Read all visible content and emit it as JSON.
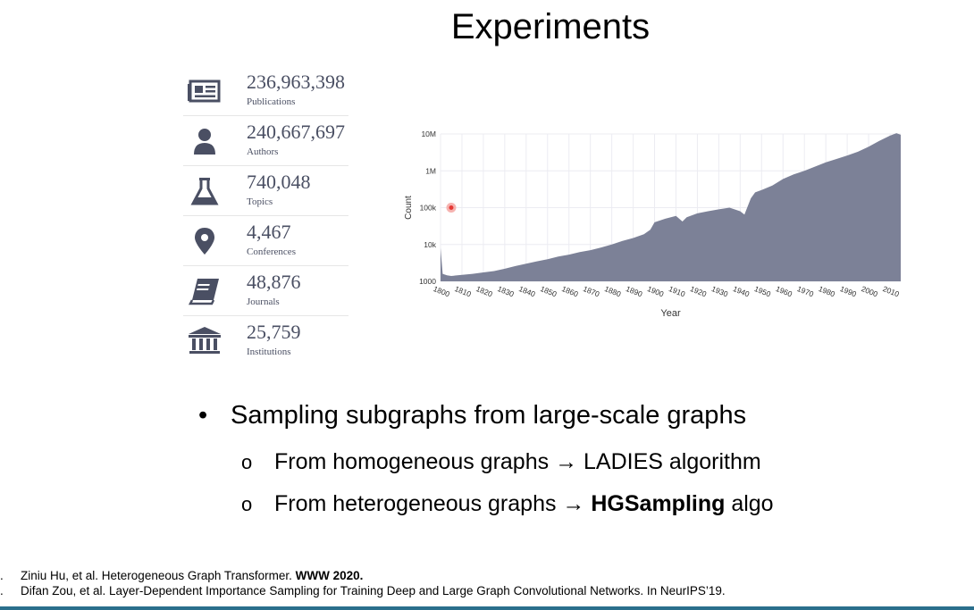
{
  "slide": {
    "title": "Experiments"
  },
  "stats": [
    {
      "value": "236,963,398",
      "label": "Publications",
      "icon": "newspaper-icon"
    },
    {
      "value": "240,667,697",
      "label": "Authors",
      "icon": "person-icon"
    },
    {
      "value": "740,048",
      "label": "Topics",
      "icon": "flask-icon"
    },
    {
      "value": "4,467",
      "label": "Conferences",
      "icon": "map-pin-icon"
    },
    {
      "value": "48,876",
      "label": "Journals",
      "icon": "book-icon"
    },
    {
      "value": "25,759",
      "label": "Institutions",
      "icon": "institution-icon"
    }
  ],
  "chart_data": {
    "type": "area",
    "xlabel": "Year",
    "ylabel": "Count",
    "yscale": "log",
    "ylim": [
      1000,
      10000000
    ],
    "yticks": [
      "1000",
      "10k",
      "100k",
      "1M",
      "10M"
    ],
    "xticks": [
      "1800",
      "1810",
      "1820",
      "1830",
      "1840",
      "1850",
      "1860",
      "1870",
      "1880",
      "1890",
      "1900",
      "1910",
      "1920",
      "1930",
      "1940",
      "1950",
      "1960",
      "1970",
      "1980",
      "1990",
      "2000",
      "2010"
    ],
    "x": [
      1800,
      1801,
      1803,
      1805,
      1810,
      1815,
      1820,
      1825,
      1830,
      1835,
      1840,
      1845,
      1850,
      1855,
      1860,
      1865,
      1870,
      1875,
      1880,
      1885,
      1890,
      1895,
      1898,
      1900,
      1905,
      1910,
      1913,
      1915,
      1920,
      1925,
      1930,
      1935,
      1940,
      1942,
      1945,
      1947,
      1950,
      1955,
      1960,
      1965,
      1970,
      1975,
      1980,
      1985,
      1990,
      1995,
      2000,
      2005,
      2010,
      2013,
      2015
    ],
    "y": [
      8000,
      1600,
      1450,
      1400,
      1500,
      1600,
      1750,
      1900,
      2200,
      2600,
      3000,
      3500,
      4000,
      4700,
      5300,
      6200,
      7000,
      8300,
      10000,
      12500,
      15000,
      19000,
      25000,
      40000,
      50000,
      60000,
      42000,
      55000,
      70000,
      80000,
      90000,
      100000,
      80000,
      65000,
      180000,
      260000,
      300000,
      400000,
      600000,
      800000,
      1000000,
      1300000,
      1700000,
      2100000,
      2600000,
      3300000,
      4500000,
      6500000,
      9000000,
      10500000,
      9500000
    ],
    "colors": {
      "area": "#7c8197",
      "grid": "#ececf2",
      "marker": "#e53935"
    }
  },
  "bullets": {
    "main": "Sampling subgraphs from large-scale graphs",
    "sub1": "From homogeneous graphs → LADIES algorithm",
    "sub2_prefix": "From heterogeneous graphs → ",
    "sub2_bold": "HGSampling",
    "sub2_suffix": " algo"
  },
  "references": [
    {
      "marker": ".",
      "text": "Ziniu Hu, et al. Heterogeneous Graph Transformer. ",
      "bold": "WWW 2020."
    },
    {
      "marker": ".",
      "text": "Difan Zou, et al. Layer-Dependent Importance Sampling for Training Deep and Large Graph Convolutional Networks. In NeurIPS’19.",
      "bold": ""
    }
  ]
}
